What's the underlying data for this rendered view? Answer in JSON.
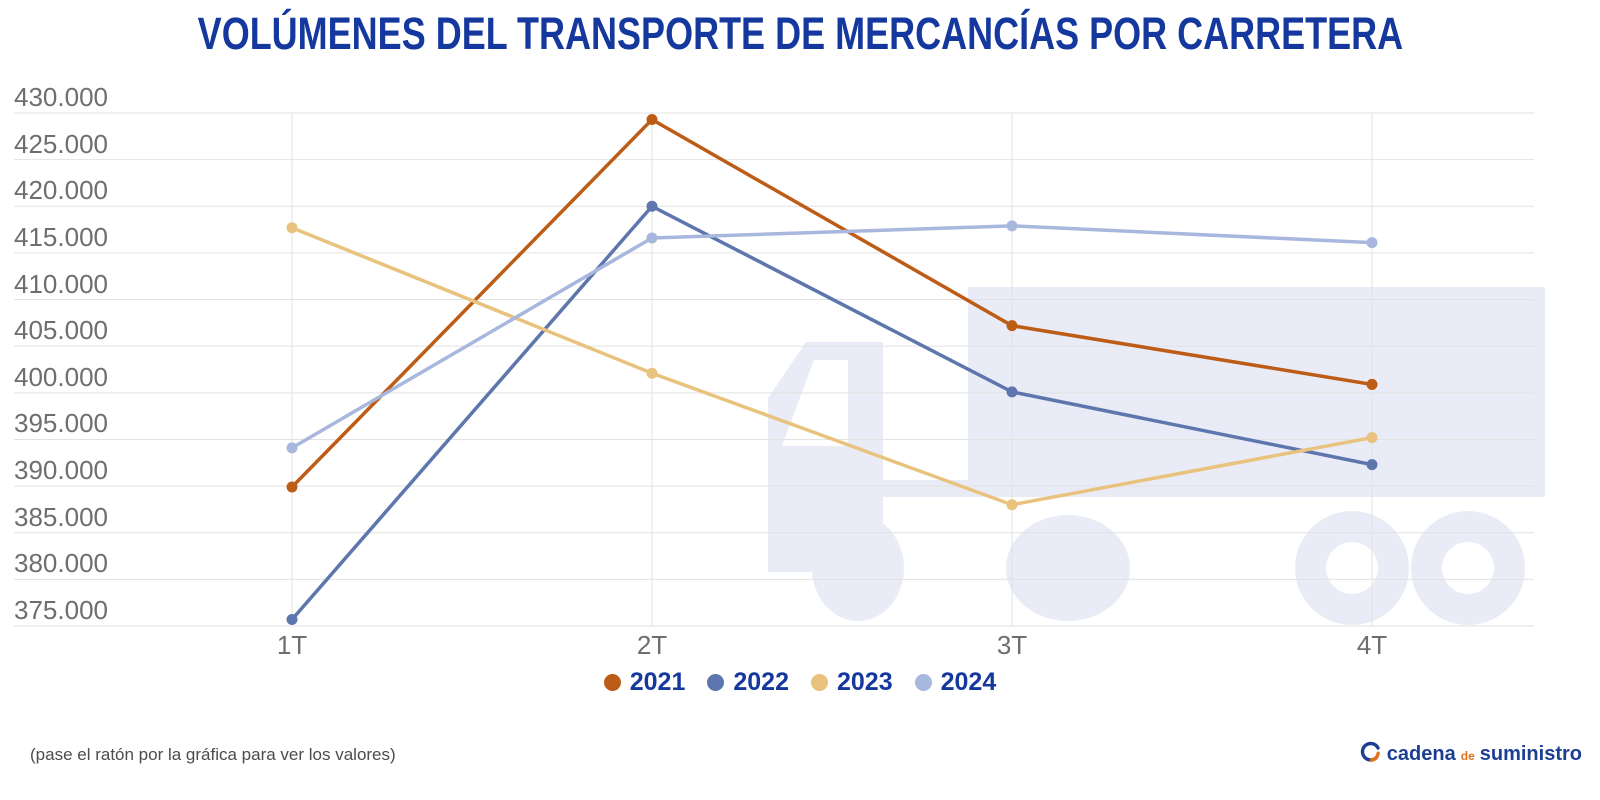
{
  "title": "VOLÚMENES DEL TRANSPORTE DE MERCANCÍAS POR CARRETERA",
  "footer": {
    "note": "(pase el ratón por la gráfica para ver los valores)"
  },
  "logo": {
    "text_primary": "cadena",
    "text_middle": "de",
    "text_secondary": "suministro",
    "icon": "circular-arrows-icon"
  },
  "colors": {
    "title_text": "#14389d",
    "legend_text": "#14389d",
    "axis_text": "#6e6e6e",
    "gridline": "#e2e2e2",
    "watermark": "#e9ecf7",
    "note_text": "#4c4c4c",
    "logo_blue": "#1c3f93",
    "logo_orange": "#e1731c",
    "background": "#ffffff"
  },
  "chart_data": {
    "type": "line",
    "title": "VOLÚMENES DEL TRANSPORTE DE MERCANCÍAS POR CARRETERA",
    "xlabel": "",
    "ylabel": "",
    "grid": true,
    "legend_position": "bottom",
    "categories": [
      "1T",
      "2T",
      "3T",
      "4T"
    ],
    "series": [
      {
        "name": "2021",
        "color": "#bd5c17",
        "values": [
          389900,
          429300,
          407200,
          400900
        ]
      },
      {
        "name": "2022",
        "color": "#5e76ae",
        "values": [
          375700,
          420000,
          400100,
          392300
        ]
      },
      {
        "name": "2023",
        "color": "#e9c27d",
        "values": [
          417700,
          402100,
          388000,
          395200
        ]
      },
      {
        "name": "2024",
        "color": "#a8b7dd",
        "values": [
          394100,
          416600,
          417900,
          416100
        ]
      }
    ],
    "ylim": [
      375000,
      430000
    ],
    "ytick_step": 5000,
    "ytick_labels": [
      "430.000",
      "425.000",
      "420.000",
      "415.000",
      "410.000",
      "405.000",
      "400.000",
      "395.000",
      "390.000",
      "385.000",
      "380.000",
      "375.000"
    ]
  }
}
